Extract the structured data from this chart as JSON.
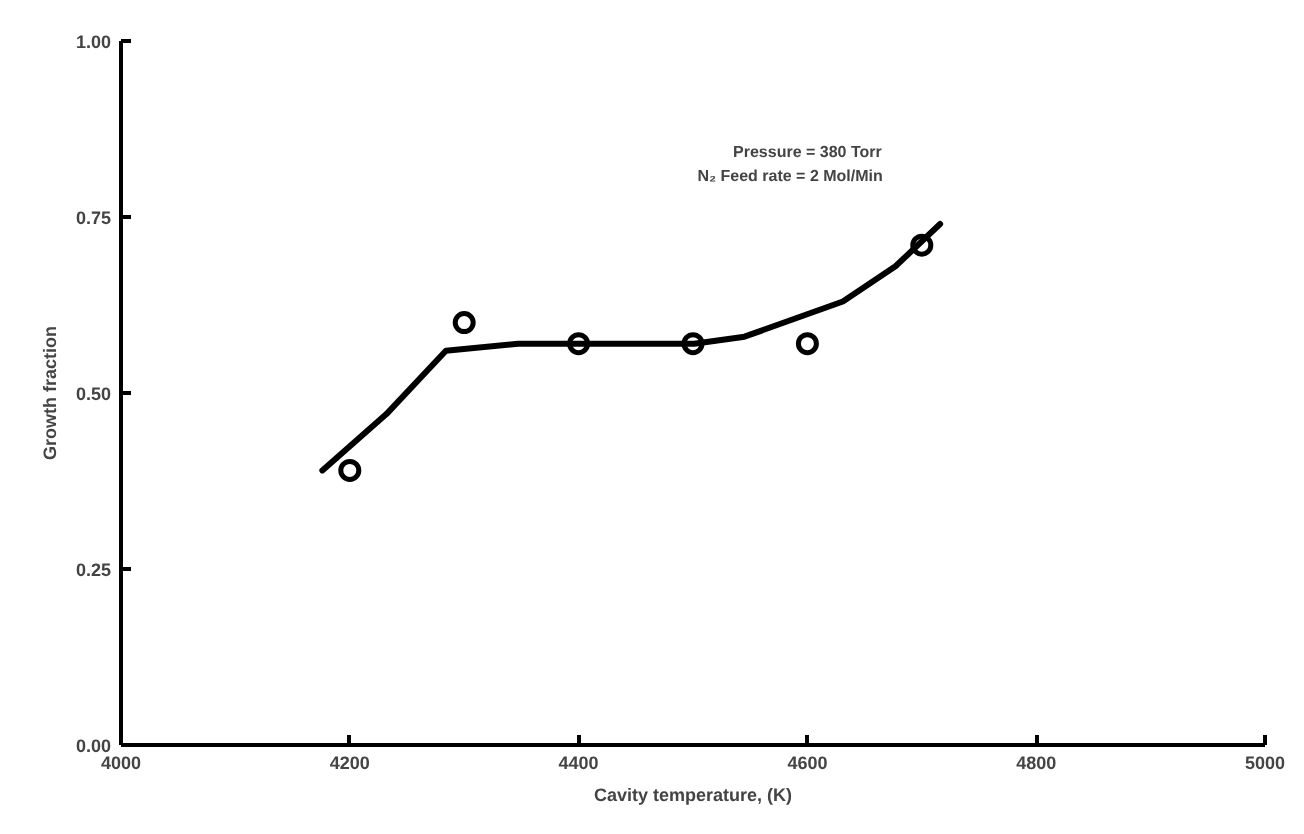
{
  "chart_data": {
    "type": "scatter",
    "xlabel": "Cavity temperature, (K)",
    "ylabel": "Growth fraction",
    "annotations": [
      "Pressure = 380 Torr",
      "N₂ Feed rate = 2 Mol/Min"
    ],
    "xlim": [
      4000,
      5000
    ],
    "ylim": [
      0,
      1
    ],
    "xticks": [
      4000,
      4200,
      4400,
      4600,
      4800,
      5000
    ],
    "yticks": [
      {
        "value": 0,
        "label": "0.00"
      },
      {
        "value": 0.25,
        "label": "0.25"
      },
      {
        "value": 0.5,
        "label": "0.50"
      },
      {
        "value": 0.75,
        "label": "0.75"
      },
      {
        "value": 1,
        "label": "1.00"
      }
    ],
    "grid": false,
    "series": [
      {
        "marker": "circle",
        "color": "#000000",
        "x": [
          4200,
          4300,
          4400,
          4500,
          4600,
          4700
        ],
        "values": [
          0.39,
          0.6,
          0.57,
          0.57,
          0.57,
          0.71
        ]
      },
      {
        "type": "line",
        "line_style": "solid",
        "color": "#000000",
        "x": [
          4176,
          4232,
          4284,
          4347,
          4501,
          4545,
          4631,
          4677,
          4716
        ],
        "values": [
          0.39,
          0.47,
          0.56,
          0.57,
          0.57,
          0.58,
          0.63,
          0.68,
          0.74
        ]
      }
    ]
  }
}
